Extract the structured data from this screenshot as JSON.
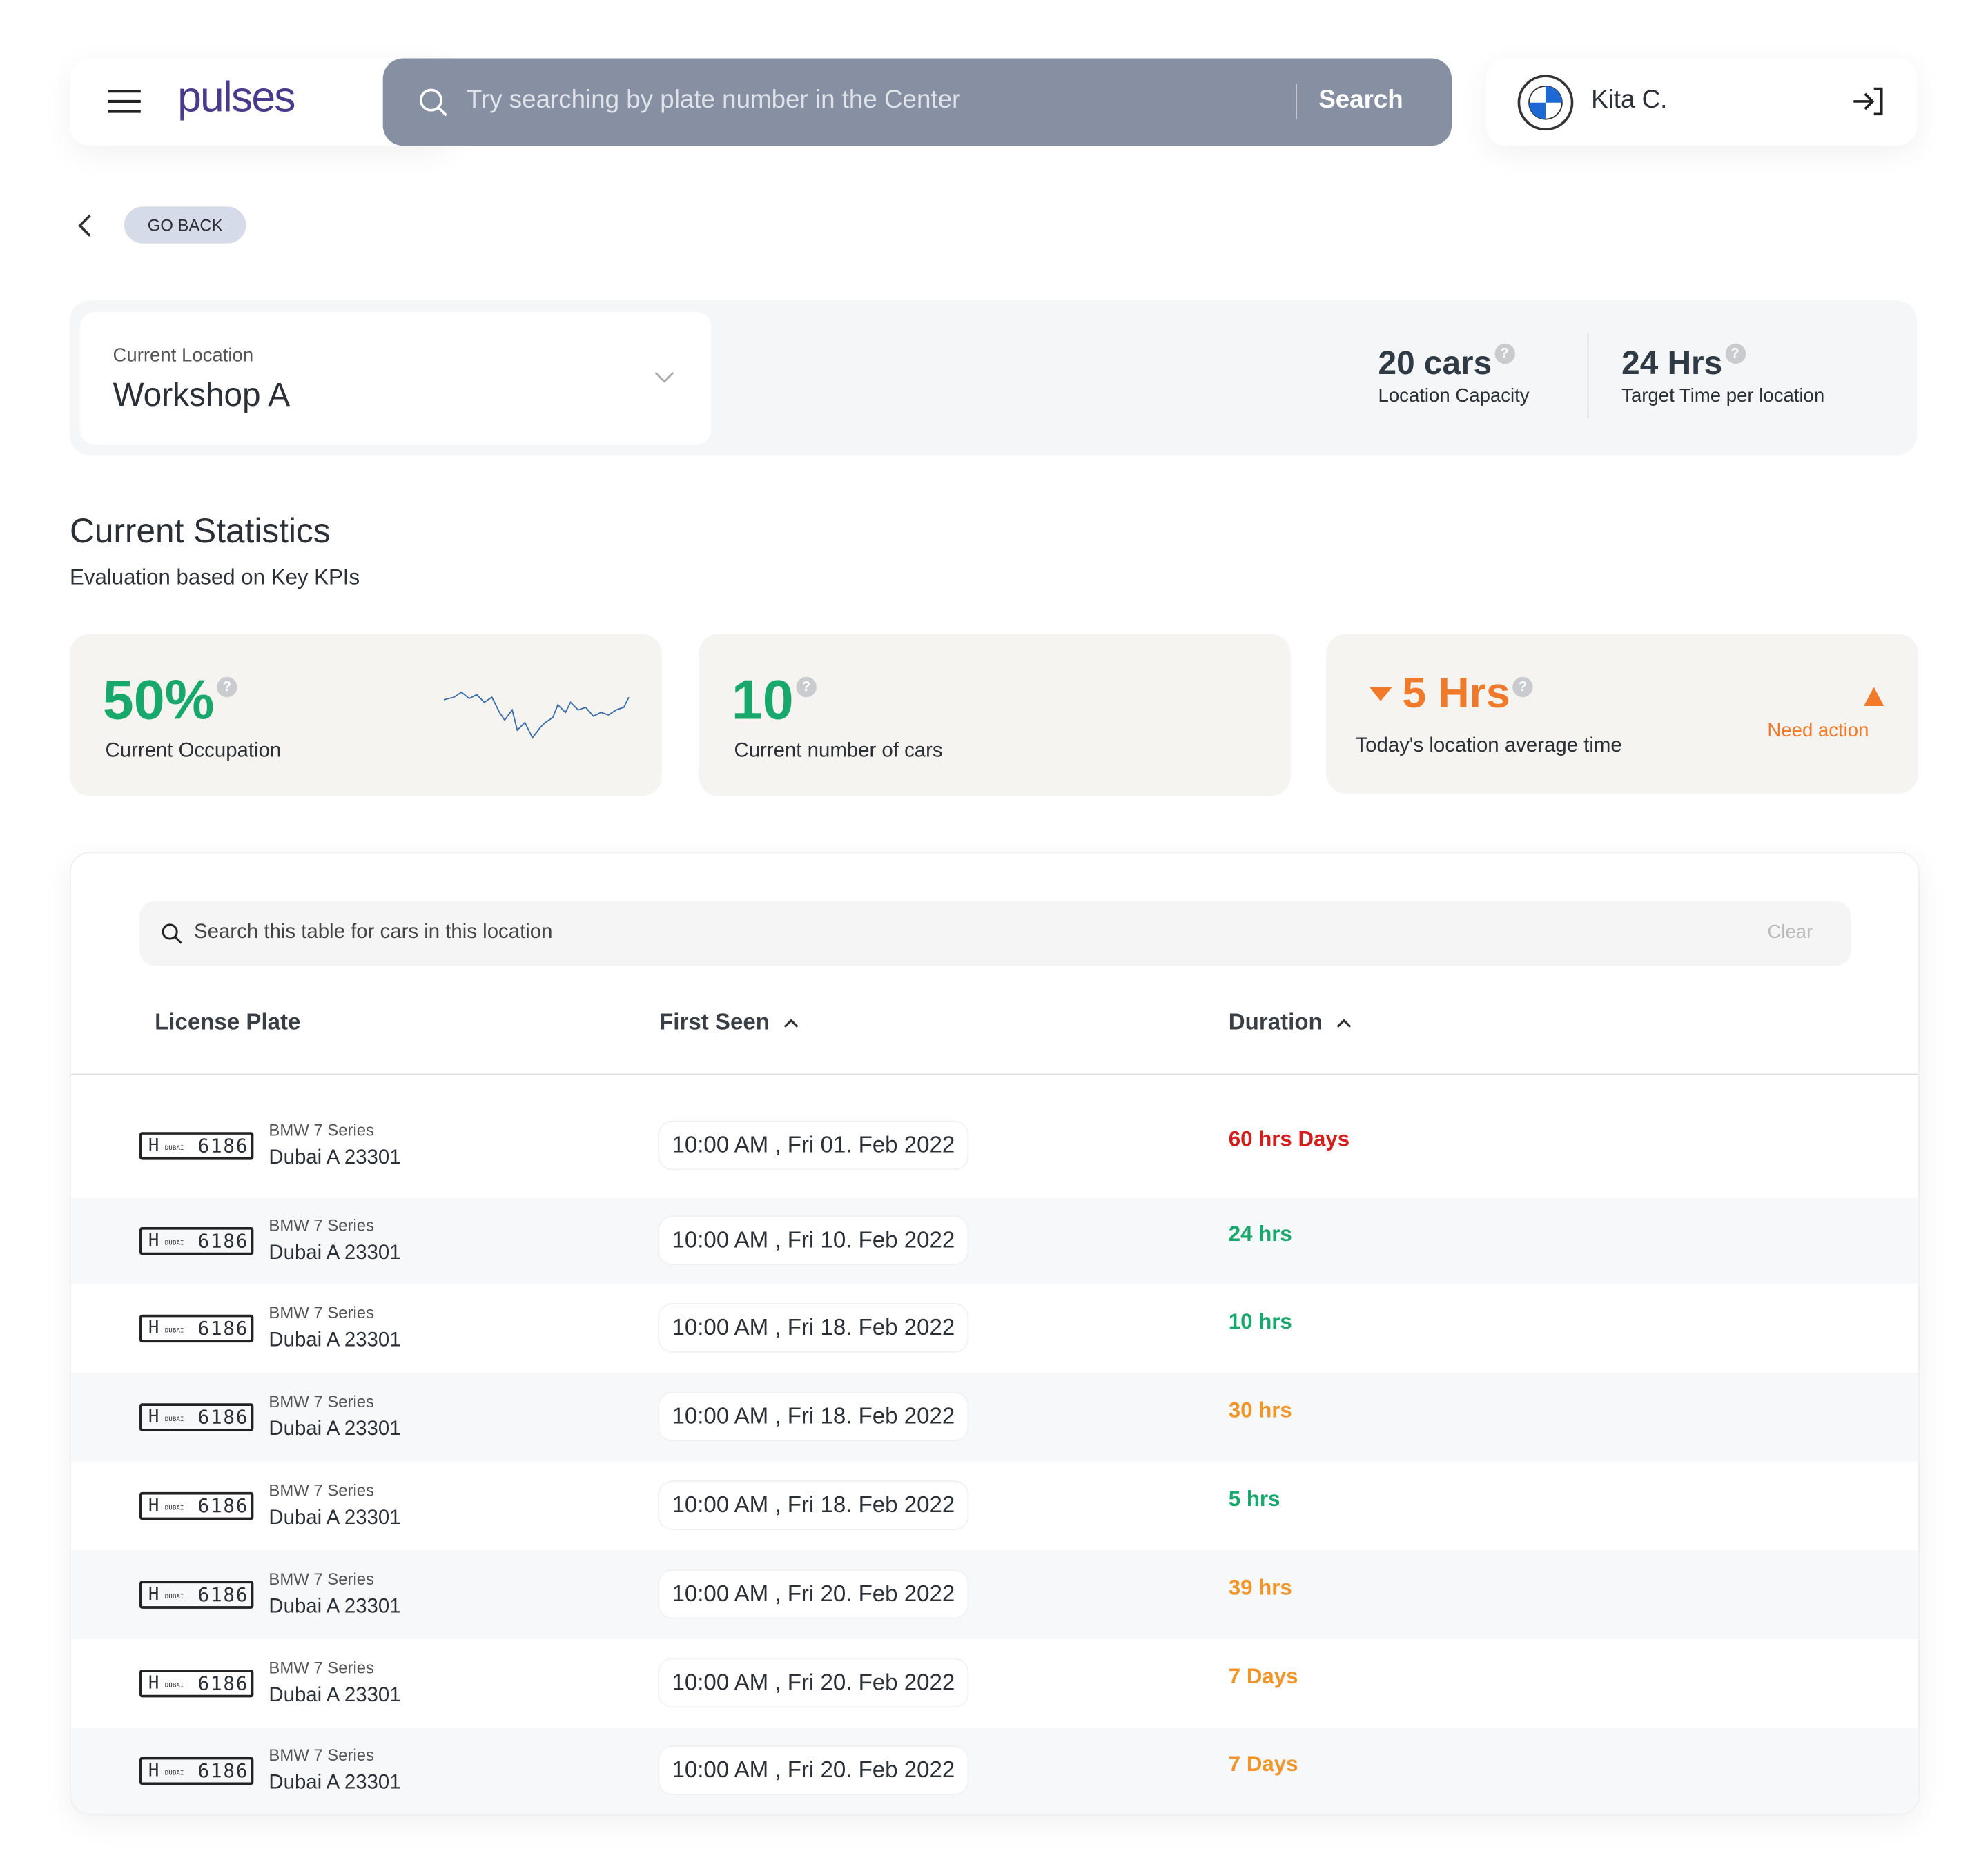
{
  "header": {
    "logo": "pulses",
    "search_placeholder": "Try searching by plate number in the Center",
    "search_button": "Search",
    "user": "Kita C."
  },
  "nav": {
    "back": "GO BACK"
  },
  "location": {
    "label": "Current Location",
    "value": "Workshop A",
    "capacity": "20 cars",
    "capacity_label": "Location Capacity",
    "target": "24 Hrs",
    "target_label": "Target Time per location"
  },
  "statistics": {
    "title": "Current Statistics",
    "subtitle": "Evaluation based on Key KPIs",
    "kpis": [
      {
        "value": "50%",
        "label": "Current Occupation",
        "color": "#18a86b"
      },
      {
        "value": "10",
        "label": "Current number of cars",
        "color": "#18a86b"
      },
      {
        "value": "5 Hrs",
        "label": "Today's location average time",
        "color": "#f07a2a",
        "alert": "Need action"
      }
    ]
  },
  "table": {
    "search_placeholder": "Search this table for cars in this location",
    "clear": "Clear",
    "columns": [
      "License Plate",
      "First Seen",
      "Duration"
    ],
    "rows": [
      {
        "plate_code": "H",
        "plate_emirate": "DUBAI",
        "plate_number": "6186",
        "model": "BMW 7 Series",
        "plate": "Dubai A 23301",
        "first_seen": "10:00 AM , Fri 01. Feb 2022",
        "duration": "60 hrs Days",
        "duration_color": "#d41e1e"
      },
      {
        "plate_code": "H",
        "plate_emirate": "DUBAI",
        "plate_number": "6186",
        "model": "BMW 7 Series",
        "plate": "Dubai A 23301",
        "first_seen": "10:00 AM , Fri 10. Feb 2022",
        "duration": "24 hrs",
        "duration_color": "#18a86b"
      },
      {
        "plate_code": "H",
        "plate_emirate": "DUBAI",
        "plate_number": "6186",
        "model": "BMW 7 Series",
        "plate": "Dubai A 23301",
        "first_seen": "10:00 AM , Fri 18. Feb 2022",
        "duration": "10 hrs",
        "duration_color": "#18a86b"
      },
      {
        "plate_code": "H",
        "plate_emirate": "DUBAI",
        "plate_number": "6186",
        "model": "BMW 7 Series",
        "plate": "Dubai A 23301",
        "first_seen": "10:00 AM , Fri 18. Feb 2022",
        "duration": "30 hrs",
        "duration_color": "#f0962b"
      },
      {
        "plate_code": "H",
        "plate_emirate": "DUBAI",
        "plate_number": "6186",
        "model": "BMW 7 Series",
        "plate": "Dubai A 23301",
        "first_seen": "10:00 AM , Fri 18. Feb 2022",
        "duration": "5 hrs",
        "duration_color": "#18a86b"
      },
      {
        "plate_code": "H",
        "plate_emirate": "DUBAI",
        "plate_number": "6186",
        "model": "BMW 7 Series",
        "plate": "Dubai A 23301",
        "first_seen": "10:00 AM , Fri 20. Feb 2022",
        "duration": "39 hrs",
        "duration_color": "#f0962b"
      },
      {
        "plate_code": "H",
        "plate_emirate": "DUBAI",
        "plate_number": "6186",
        "model": "BMW 7 Series",
        "plate": "Dubai A 23301",
        "first_seen": "10:00 AM , Fri 20. Feb 2022",
        "duration": "7 Days",
        "duration_color": "#f0962b"
      },
      {
        "plate_code": "H",
        "plate_emirate": "DUBAI",
        "plate_number": "6186",
        "model": "BMW 7 Series",
        "plate": "Dubai A 23301",
        "first_seen": "10:00 AM , Fri 20. Feb 2022",
        "duration": "7 Days",
        "duration_color": "#f0962b"
      }
    ]
  }
}
